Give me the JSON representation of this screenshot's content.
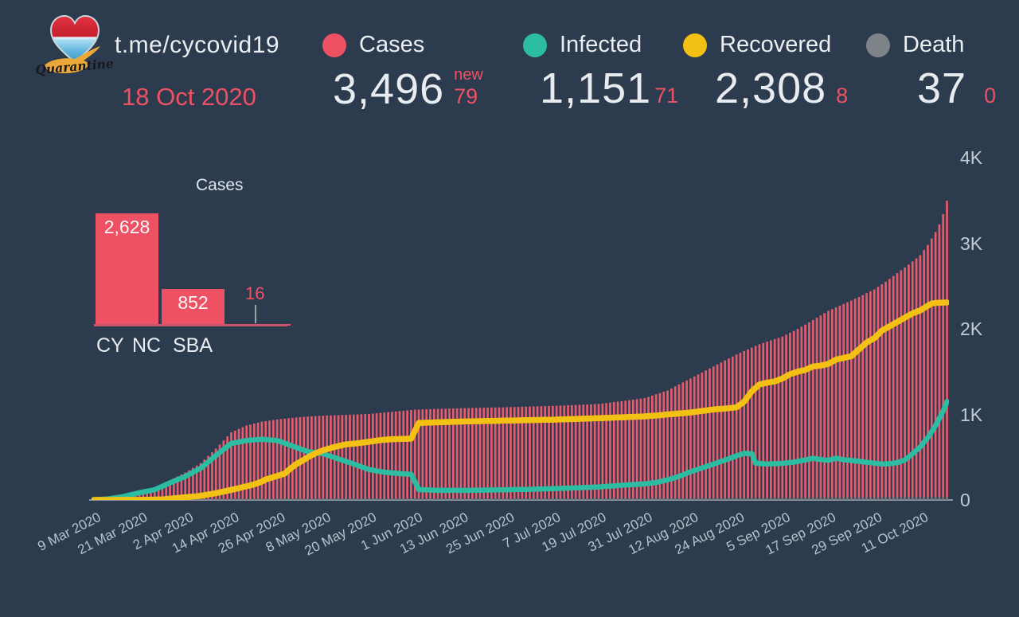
{
  "header": {
    "channel": "t.me/cycovid19",
    "date": "18 Oct 2020",
    "logo_text": "Quarantine"
  },
  "colors": {
    "background": "#2c3b4e",
    "cases": "#ef5164",
    "cases_bar": "#e65b6e",
    "infected": "#2cbca2",
    "recovered": "#f2c113",
    "death": "#75797e",
    "death_dot": "#7e8388",
    "text": "#e8ecf0",
    "tick_text": "#b7c2cb"
  },
  "stats": {
    "cases": {
      "label": "Cases",
      "value": "3,496",
      "new_label": "new",
      "delta": "79",
      "color": "#ef5164"
    },
    "infected": {
      "label": "Infected",
      "value": "1,151",
      "delta": "71",
      "color": "#2cbca2"
    },
    "recovered": {
      "label": "Recovered",
      "value": "2,308",
      "delta": "8",
      "color": "#f2c113"
    },
    "death": {
      "label": "Death",
      "value": "37",
      "delta": "0",
      "color": "#7e8388"
    }
  },
  "chart_data": [
    {
      "type": "bar",
      "title": "Cases",
      "categories": [
        "CY",
        "NC",
        "SBA"
      ],
      "values": [
        2628,
        852,
        16
      ],
      "value_labels": [
        "2,628",
        "852",
        "16"
      ],
      "bar_color": "#ef5164",
      "ylim": [
        0,
        2628
      ]
    },
    {
      "type": "composite_timeseries",
      "x_start": "9 Mar 2020",
      "x_end": "18 Oct 2020",
      "days": 224,
      "x_tick_interval_days": 12,
      "x_tick_labels": [
        "9 Mar 2020",
        "21 Mar 2020",
        "2 Apr 2020",
        "14 Apr 2020",
        "26 Apr 2020",
        "8 May 2020",
        "20 May 2020",
        "1 Jun 2020",
        "13 Jun 2020",
        "25 Jun 2020",
        "7 Jul 2020",
        "19 Jul 2020",
        "31 Jul 2020",
        "12 Aug 2020",
        "24 Aug 2020",
        "5 Sep 2020",
        "17 Sep 2020",
        "29 Sep 2020",
        "11 Oct 2020"
      ],
      "y_tick_labels": [
        "0",
        "1K",
        "2K",
        "3K",
        "4K"
      ],
      "ylim": [
        0,
        4000
      ],
      "grid": false,
      "legend_position": "top",
      "series": [
        {
          "name": "Cases",
          "type": "bar",
          "color": "#e65b6e",
          "anchors": [
            [
              0,
              2
            ],
            [
              4,
              14
            ],
            [
              8,
              46
            ],
            [
              12,
              95
            ],
            [
              16,
              140
            ],
            [
              20,
              230
            ],
            [
              24,
              320
            ],
            [
              28,
              430
            ],
            [
              32,
              600
            ],
            [
              36,
              790
            ],
            [
              40,
              870
            ],
            [
              44,
              915
            ],
            [
              48,
              940
            ],
            [
              52,
              960
            ],
            [
              56,
              975
            ],
            [
              60,
              985
            ],
            [
              66,
              995
            ],
            [
              72,
              1005
            ],
            [
              78,
              1030
            ],
            [
              84,
              1055
            ],
            [
              90,
              1065
            ],
            [
              96,
              1072
            ],
            [
              102,
              1078
            ],
            [
              108,
              1084
            ],
            [
              114,
              1092
            ],
            [
              120,
              1100
            ],
            [
              126,
              1110
            ],
            [
              132,
              1122
            ],
            [
              138,
              1155
            ],
            [
              144,
              1190
            ],
            [
              147,
              1235
            ],
            [
              150,
              1280
            ],
            [
              153,
              1350
            ],
            [
              156,
              1420
            ],
            [
              159,
              1490
            ],
            [
              162,
              1560
            ],
            [
              165,
              1630
            ],
            [
              168,
              1700
            ],
            [
              171,
              1760
            ],
            [
              174,
              1820
            ],
            [
              177,
              1865
            ],
            [
              180,
              1910
            ],
            [
              183,
              1975
            ],
            [
              186,
              2050
            ],
            [
              189,
              2130
            ],
            [
              192,
              2210
            ],
            [
              195,
              2270
            ],
            [
              198,
              2330
            ],
            [
              201,
              2395
            ],
            [
              204,
              2460
            ],
            [
              207,
              2550
            ],
            [
              210,
              2650
            ],
            [
              213,
              2750
            ],
            [
              216,
              2860
            ],
            [
              218,
              2980
            ],
            [
              220,
              3130
            ],
            [
              221,
              3220
            ],
            [
              222,
              3340
            ],
            [
              223,
              3496
            ]
          ]
        },
        {
          "name": "Infected",
          "type": "line",
          "color": "#2cbca2",
          "anchors": [
            [
              0,
              2
            ],
            [
              4,
              13
            ],
            [
              8,
              42
            ],
            [
              12,
              85
            ],
            [
              16,
              120
            ],
            [
              20,
              200
            ],
            [
              24,
              275
            ],
            [
              28,
              370
            ],
            [
              32,
              520
            ],
            [
              36,
              660
            ],
            [
              40,
              695
            ],
            [
              44,
              710
            ],
            [
              48,
              695
            ],
            [
              52,
              630
            ],
            [
              56,
              565
            ],
            [
              60,
              540
            ],
            [
              64,
              480
            ],
            [
              68,
              420
            ],
            [
              72,
              355
            ],
            [
              76,
              325
            ],
            [
              80,
              308
            ],
            [
              83,
              300
            ],
            [
              85,
              122
            ],
            [
              90,
              113
            ],
            [
              96,
              112
            ],
            [
              102,
              115
            ],
            [
              108,
              120
            ],
            [
              114,
              125
            ],
            [
              120,
              132
            ],
            [
              126,
              142
            ],
            [
              132,
              152
            ],
            [
              138,
              172
            ],
            [
              141,
              180
            ],
            [
              144,
              188
            ],
            [
              147,
              205
            ],
            [
              150,
              235
            ],
            [
              153,
              275
            ],
            [
              156,
              330
            ],
            [
              159,
              375
            ],
            [
              162,
              420
            ],
            [
              165,
              465
            ],
            [
              168,
              515
            ],
            [
              170,
              545
            ],
            [
              172,
              540
            ],
            [
              173,
              430
            ],
            [
              176,
              420
            ],
            [
              180,
              428
            ],
            [
              183,
              442
            ],
            [
              186,
              468
            ],
            [
              188,
              487
            ],
            [
              190,
              473
            ],
            [
              192,
              463
            ],
            [
              194,
              488
            ],
            [
              196,
              470
            ],
            [
              198,
              462
            ],
            [
              200,
              452
            ],
            [
              202,
              440
            ],
            [
              204,
              430
            ],
            [
              206,
              420
            ],
            [
              208,
              424
            ],
            [
              210,
              436
            ],
            [
              212,
              468
            ],
            [
              214,
              540
            ],
            [
              216,
              620
            ],
            [
              218,
              730
            ],
            [
              220,
              870
            ],
            [
              222,
              1040
            ],
            [
              223,
              1151
            ]
          ]
        },
        {
          "name": "Recovered",
          "type": "line",
          "color": "#f2c113",
          "anchors": [
            [
              0,
              0
            ],
            [
              12,
              1
            ],
            [
              18,
              6
            ],
            [
              24,
              32
            ],
            [
              28,
              48
            ],
            [
              32,
              80
            ],
            [
              36,
              118
            ],
            [
              40,
              160
            ],
            [
              42,
              182
            ],
            [
              44,
              215
            ],
            [
              45,
              240
            ],
            [
              48,
              280
            ],
            [
              50,
              310
            ],
            [
              51,
              350
            ],
            [
              53,
              420
            ],
            [
              55,
              470
            ],
            [
              56,
              500
            ],
            [
              58,
              545
            ],
            [
              60,
              580
            ],
            [
              63,
              620
            ],
            [
              66,
              650
            ],
            [
              69,
              662
            ],
            [
              72,
              680
            ],
            [
              75,
              700
            ],
            [
              78,
              710
            ],
            [
              83,
              716
            ],
            [
              85,
              900
            ],
            [
              90,
              908
            ],
            [
              96,
              916
            ],
            [
              102,
              922
            ],
            [
              108,
              928
            ],
            [
              114,
              933
            ],
            [
              120,
              938
            ],
            [
              126,
              947
            ],
            [
              132,
              956
            ],
            [
              138,
              966
            ],
            [
              144,
              977
            ],
            [
              147,
              986
            ],
            [
              150,
              1000
            ],
            [
              153,
              1010
            ],
            [
              156,
              1022
            ],
            [
              159,
              1040
            ],
            [
              162,
              1058
            ],
            [
              165,
              1068
            ],
            [
              168,
              1082
            ],
            [
              170,
              1150
            ],
            [
              172,
              1270
            ],
            [
              174,
              1350
            ],
            [
              176,
              1370
            ],
            [
              178,
              1385
            ],
            [
              180,
              1420
            ],
            [
              182,
              1470
            ],
            [
              184,
              1500
            ],
            [
              186,
              1520
            ],
            [
              188,
              1560
            ],
            [
              190,
              1570
            ],
            [
              192,
              1590
            ],
            [
              194,
              1640
            ],
            [
              196,
              1660
            ],
            [
              198,
              1680
            ],
            [
              200,
              1760
            ],
            [
              202,
              1840
            ],
            [
              204,
              1890
            ],
            [
              206,
              1980
            ],
            [
              208,
              2030
            ],
            [
              210,
              2080
            ],
            [
              212,
              2130
            ],
            [
              214,
              2180
            ],
            [
              216,
              2215
            ],
            [
              218,
              2270
            ],
            [
              219,
              2295
            ],
            [
              220,
              2302
            ],
            [
              223,
              2308
            ]
          ]
        },
        {
          "name": "Death",
          "type": "bar",
          "color": "#75797e",
          "anchors": [
            [
              0,
              0
            ],
            [
              10,
              0
            ],
            [
              12,
              1
            ],
            [
              16,
              3
            ],
            [
              20,
              6
            ],
            [
              24,
              9
            ],
            [
              30,
              11
            ],
            [
              36,
              13
            ],
            [
              42,
              15
            ],
            [
              48,
              17
            ],
            [
              60,
              17
            ],
            [
              72,
              18
            ],
            [
              84,
              18
            ],
            [
              120,
              19
            ],
            [
              138,
              20
            ],
            [
              150,
              21
            ],
            [
              156,
              22
            ],
            [
              162,
              24
            ],
            [
              168,
              25
            ],
            [
              174,
              27
            ],
            [
              180,
              28
            ],
            [
              186,
              29
            ],
            [
              192,
              30
            ],
            [
              198,
              31
            ],
            [
              204,
              33
            ],
            [
              210,
              34
            ],
            [
              216,
              35
            ],
            [
              220,
              36
            ],
            [
              223,
              37
            ]
          ]
        }
      ]
    }
  ]
}
